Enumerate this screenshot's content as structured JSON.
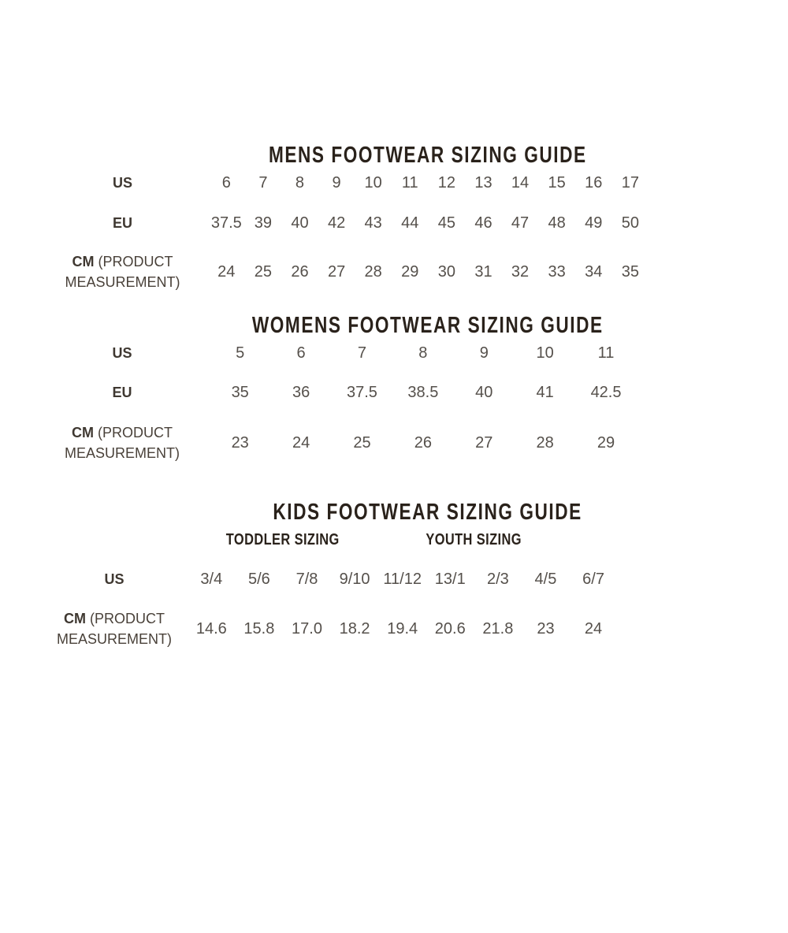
{
  "colors": {
    "background": "#ffffff",
    "title": "#2a221b",
    "label": "#3f3831",
    "value": "#55504b"
  },
  "sections": {
    "mens": {
      "title": "MENS FOOTWEAR SIZING GUIDE",
      "us": {
        "label": "US",
        "values": [
          "6",
          "7",
          "8",
          "9",
          "10",
          "11",
          "12",
          "13",
          "14",
          "15",
          "16",
          "17"
        ]
      },
      "eu": {
        "label": "EU",
        "values": [
          "37.5",
          "39",
          "40",
          "42",
          "43",
          "44",
          "45",
          "46",
          "47",
          "48",
          "49",
          "50"
        ]
      },
      "cm": {
        "label": "CM",
        "label_note": "(PRODUCT MEASUREMENT)",
        "values": [
          "24",
          "25",
          "26",
          "27",
          "28",
          "29",
          "30",
          "31",
          "32",
          "33",
          "34",
          "35"
        ]
      }
    },
    "womens": {
      "title": "WOMENS FOOTWEAR SIZING GUIDE",
      "us": {
        "label": "US",
        "values": [
          "5",
          "6",
          "7",
          "8",
          "9",
          "10",
          "11"
        ]
      },
      "eu": {
        "label": "EU",
        "values": [
          "35",
          "36",
          "37.5",
          "38.5",
          "40",
          "41",
          "42.5"
        ]
      },
      "cm": {
        "label": "CM",
        "label_note": "(PRODUCT MEASUREMENT)",
        "values": [
          "23",
          "24",
          "25",
          "26",
          "27",
          "28",
          "29"
        ]
      }
    },
    "kids": {
      "title": "KIDS FOOTWEAR SIZING GUIDE",
      "subheaders": {
        "toddler": "TODDLER SIZING",
        "youth": "YOUTH SIZING"
      },
      "us": {
        "label": "US",
        "values": [
          "3/4",
          "5/6",
          "7/8",
          "9/10",
          "11/12",
          "13/1",
          "2/3",
          "4/5",
          "6/7"
        ]
      },
      "cm": {
        "label": "CM",
        "label_note": "(PRODUCT MEASUREMENT)",
        "values": [
          "14.6",
          "15.8",
          "17.0",
          "18.2",
          "19.4",
          "20.6",
          "21.8",
          "23",
          "24"
        ]
      }
    }
  }
}
